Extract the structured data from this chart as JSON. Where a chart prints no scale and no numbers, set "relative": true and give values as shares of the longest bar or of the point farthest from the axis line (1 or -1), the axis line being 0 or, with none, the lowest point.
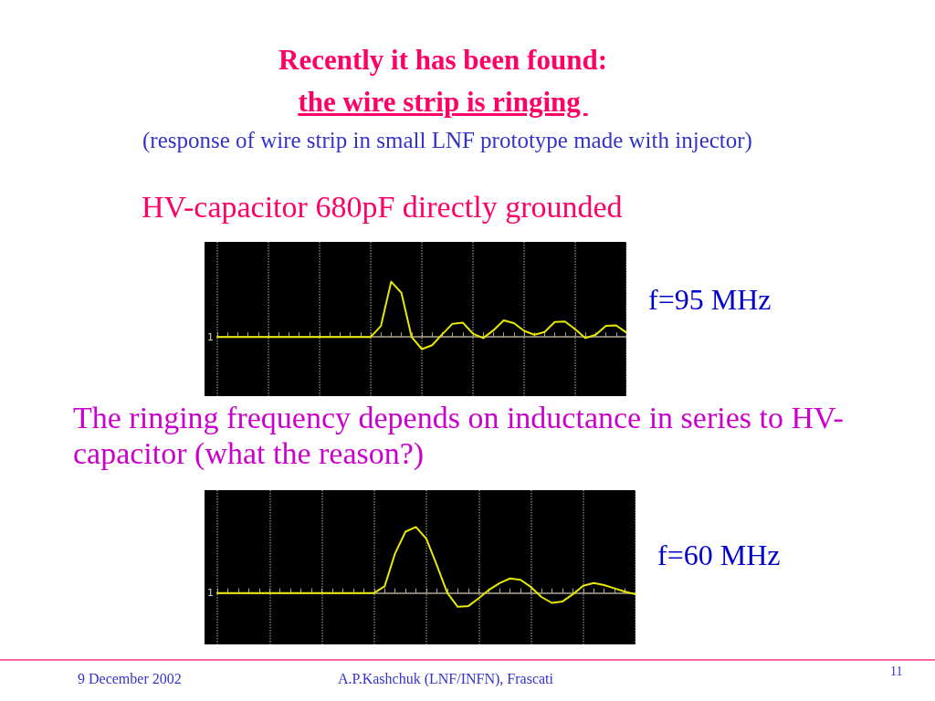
{
  "chart_data": [
    {
      "type": "line",
      "title": "Recently it has been found:",
      "subtitle": "the wire strip is ringing ",
      "relative": true,
      "tick_labels": false,
      "grid": "x",
      "categories": [
        null,
        null,
        null,
        null,
        null,
        null,
        null,
        null,
        null,
        null,
        null,
        null,
        null,
        null,
        null,
        null,
        null,
        null,
        null,
        null,
        null,
        null,
        null,
        null,
        null,
        null,
        null,
        null,
        null,
        null,
        null,
        null,
        null,
        null,
        null,
        null,
        null,
        null,
        null,
        null,
        null
      ],
      "series": [
        {
          "color": "#e8e800",
          "values": [
            0,
            0,
            0,
            0,
            0,
            0,
            0,
            0,
            0,
            0,
            0,
            0,
            0,
            0,
            0,
            0,
            0.2,
            1,
            0.8,
            0,
            -0.22,
            -0.15,
            0.05,
            0.24,
            0.26,
            0.06,
            -0.02,
            0.12,
            0.3,
            0.25,
            0.11,
            0.04,
            0.09,
            0.27,
            0.28,
            0.14,
            -0.02,
            0.04,
            0.2,
            0.21,
            0.08
          ]
        }
      ],
      "annotations": [
        "(response of wire strip in small LNF prototype made with injector)",
        "HV-capacitor 680pF directly grounded",
        "f=95 MHz",
        "1"
      ]
    },
    {
      "type": "line",
      "title": "The ringing frequency depends on inductance in series to HV-capacitor (what the reason?)",
      "relative": true,
      "tick_labels": false,
      "grid": "x",
      "categories": [
        null,
        null,
        null,
        null,
        null,
        null,
        null,
        null,
        null,
        null,
        null,
        null,
        null,
        null,
        null,
        null,
        null,
        null,
        null,
        null,
        null,
        null,
        null,
        null,
        null,
        null,
        null,
        null,
        null,
        null,
        null,
        null,
        null,
        null,
        null,
        null,
        null,
        null,
        null,
        null,
        null
      ],
      "series": [
        {
          "color": "#e8e800",
          "values": [
            0,
            0,
            0,
            0,
            0,
            0,
            0,
            0,
            0,
            0,
            0,
            0,
            0,
            0,
            0,
            0,
            0.1,
            0.6,
            0.93,
            1,
            0.82,
            0.42,
            0,
            -0.21,
            -0.2,
            -0.08,
            0.05,
            0.15,
            0.22,
            0.2,
            0.09,
            -0.06,
            -0.15,
            -0.13,
            -0.02,
            0.11,
            0.15,
            0.12,
            0.07,
            0.02,
            -0.02
          ]
        }
      ],
      "annotations": [
        "f=60 MHz",
        "9 December 2002",
        "A.P.Kashchuk (LNF/INFN), Frascati",
        "11",
        "1"
      ]
    }
  ]
}
